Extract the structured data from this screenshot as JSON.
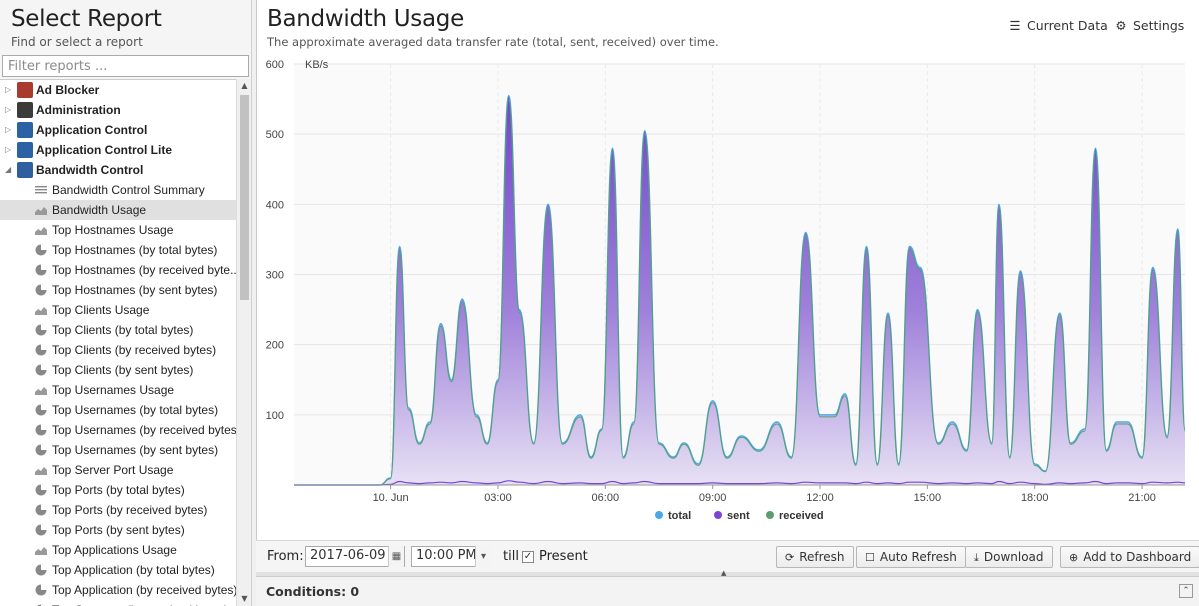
{
  "left_panel": {
    "title": "Select Report",
    "subtitle": "Find or select a report",
    "filter_placeholder": "Filter reports ...",
    "groups": [
      {
        "label": "Ad Blocker",
        "icon": "ad-blocker-icon",
        "color": "#a83a2e",
        "expanded": false
      },
      {
        "label": "Administration",
        "icon": "administration-icon",
        "color": "#3b3b3b",
        "expanded": false
      },
      {
        "label": "Application Control",
        "icon": "application-control-icon",
        "color": "#2b62a6",
        "expanded": false
      },
      {
        "label": "Application Control Lite",
        "icon": "application-control-lite-icon",
        "color": "#2b62a6",
        "expanded": false
      },
      {
        "label": "Bandwidth Control",
        "icon": "bandwidth-control-icon",
        "color": "#2f5f9e",
        "expanded": true
      }
    ],
    "reports": [
      {
        "label": "Bandwidth Control Summary",
        "icon": "text-report-icon",
        "selected": false
      },
      {
        "label": "Bandwidth Usage",
        "icon": "area-chart-icon",
        "selected": true
      },
      {
        "label": "Top Hostnames Usage",
        "icon": "area-chart-icon",
        "selected": false
      },
      {
        "label": "Top Hostnames (by total bytes)",
        "icon": "pie-chart-icon",
        "selected": false
      },
      {
        "label": "Top Hostnames (by received byte...",
        "icon": "pie-chart-icon",
        "selected": false
      },
      {
        "label": "Top Hostnames (by sent bytes)",
        "icon": "pie-chart-icon",
        "selected": false
      },
      {
        "label": "Top Clients Usage",
        "icon": "area-chart-icon",
        "selected": false
      },
      {
        "label": "Top Clients (by total bytes)",
        "icon": "pie-chart-icon",
        "selected": false
      },
      {
        "label": "Top Clients (by received bytes)",
        "icon": "pie-chart-icon",
        "selected": false
      },
      {
        "label": "Top Clients (by sent bytes)",
        "icon": "pie-chart-icon",
        "selected": false
      },
      {
        "label": "Top Usernames Usage",
        "icon": "area-chart-icon",
        "selected": false
      },
      {
        "label": "Top Usernames (by total bytes)",
        "icon": "pie-chart-icon",
        "selected": false
      },
      {
        "label": "Top Usernames (by received bytes)",
        "icon": "pie-chart-icon",
        "selected": false
      },
      {
        "label": "Top Usernames (by sent bytes)",
        "icon": "pie-chart-icon",
        "selected": false
      },
      {
        "label": "Top Server Port Usage",
        "icon": "area-chart-icon",
        "selected": false
      },
      {
        "label": "Top Ports (by total bytes)",
        "icon": "pie-chart-icon",
        "selected": false
      },
      {
        "label": "Top Ports (by received bytes)",
        "icon": "pie-chart-icon",
        "selected": false
      },
      {
        "label": "Top Ports (by sent bytes)",
        "icon": "pie-chart-icon",
        "selected": false
      },
      {
        "label": "Top Applications Usage",
        "icon": "area-chart-icon",
        "selected": false
      },
      {
        "label": "Top Application (by total bytes)",
        "icon": "pie-chart-icon",
        "selected": false
      },
      {
        "label": "Top Application (by received bytes)",
        "icon": "pie-chart-icon",
        "selected": false
      },
      {
        "label": "Top Category (by received bytes)",
        "icon": "pie-chart-icon",
        "selected": false
      }
    ]
  },
  "main": {
    "title": "Bandwidth Usage",
    "subtitle": "The approximate averaged data transfer rate (total, sent, received) over time.",
    "current_data_label": "Current Data",
    "settings_label": "Settings"
  },
  "toolbar": {
    "from_label": "From:",
    "from_date": "2017-06-09",
    "from_time": "10:00 PM",
    "till_label": "till",
    "present_label": "Present",
    "present_checked": true,
    "refresh_label": "Refresh",
    "auto_refresh_label": "Auto Refresh",
    "download_label": "Download",
    "add_dashboard_label": "Add to Dashboard"
  },
  "conditions": {
    "label": "Conditions: 0"
  },
  "chart_data": {
    "type": "area",
    "title": "",
    "xlabel": "",
    "ylabel": "KB/s",
    "ylim": [
      0,
      600
    ],
    "yticks": [
      100,
      200,
      300,
      400,
      500,
      600
    ],
    "xticks": [
      "10. Jun",
      "03:00",
      "06:00",
      "09:00",
      "12:00",
      "15:00",
      "18:00",
      "21:00"
    ],
    "xlim_hours": [
      -2.7,
      22.2
    ],
    "xtick_hours": [
      0,
      3,
      6,
      9,
      12,
      15,
      18,
      21
    ],
    "grid": true,
    "legend_position": "bottom",
    "x_hours": [
      -2.7,
      -0.3,
      0.0,
      0.25,
      0.5,
      0.8,
      1.1,
      1.4,
      1.7,
      2.0,
      2.4,
      2.7,
      3.0,
      3.3,
      3.6,
      4.0,
      4.4,
      4.8,
      5.3,
      5.6,
      5.9,
      6.2,
      6.5,
      6.8,
      7.1,
      7.5,
      7.9,
      8.2,
      8.6,
      9.0,
      9.4,
      9.8,
      10.3,
      10.8,
      11.2,
      11.6,
      12.0,
      12.4,
      12.7,
      13.0,
      13.3,
      13.6,
      13.9,
      14.2,
      14.5,
      14.8,
      15.3,
      15.7,
      16.1,
      16.4,
      16.8,
      17.0,
      17.3,
      17.6,
      18.0,
      18.3,
      18.7,
      19.0,
      19.4,
      19.7,
      20.0,
      20.3,
      20.6,
      21.0,
      21.3,
      21.7,
      22.0,
      22.2
    ],
    "series": [
      {
        "name": "total",
        "color": "#4aa8e8",
        "values": [
          0,
          0,
          10,
          340,
          110,
          60,
          90,
          230,
          150,
          265,
          100,
          60,
          150,
          555,
          250,
          60,
          400,
          60,
          100,
          40,
          80,
          480,
          40,
          90,
          505,
          60,
          40,
          60,
          30,
          120,
          40,
          70,
          50,
          90,
          40,
          360,
          100,
          100,
          130,
          30,
          340,
          30,
          245,
          30,
          340,
          310,
          60,
          90,
          50,
          250,
          60,
          400,
          40,
          305,
          30,
          20,
          245,
          60,
          80,
          480,
          50,
          90,
          90,
          40,
          310,
          70,
          365,
          80
        ]
      },
      {
        "name": "sent",
        "color": "#7b46d4",
        "values": [
          0,
          0,
          1,
          5,
          3,
          2,
          3,
          4,
          3,
          5,
          3,
          2,
          3,
          6,
          4,
          2,
          5,
          2,
          3,
          2,
          2,
          5,
          2,
          3,
          5,
          2,
          2,
          2,
          2,
          3,
          2,
          2,
          2,
          3,
          2,
          4,
          3,
          3,
          3,
          2,
          4,
          2,
          3,
          2,
          4,
          4,
          2,
          3,
          2,
          3,
          2,
          5,
          2,
          4,
          2,
          1,
          3,
          2,
          3,
          5,
          2,
          3,
          3,
          2,
          4,
          3,
          4,
          3
        ]
      },
      {
        "name": "received",
        "color": "#5a9e6f",
        "values": [
          0,
          0,
          9,
          335,
          107,
          58,
          87,
          226,
          147,
          260,
          97,
          58,
          147,
          549,
          246,
          58,
          395,
          58,
          97,
          38,
          78,
          475,
          38,
          87,
          500,
          58,
          38,
          58,
          28,
          117,
          38,
          68,
          48,
          87,
          38,
          356,
          97,
          97,
          127,
          28,
          336,
          28,
          242,
          28,
          336,
          306,
          58,
          87,
          48,
          247,
          58,
          395,
          38,
          301,
          28,
          19,
          242,
          58,
          77,
          475,
          48,
          87,
          87,
          38,
          306,
          67,
          361,
          77
        ]
      }
    ]
  }
}
